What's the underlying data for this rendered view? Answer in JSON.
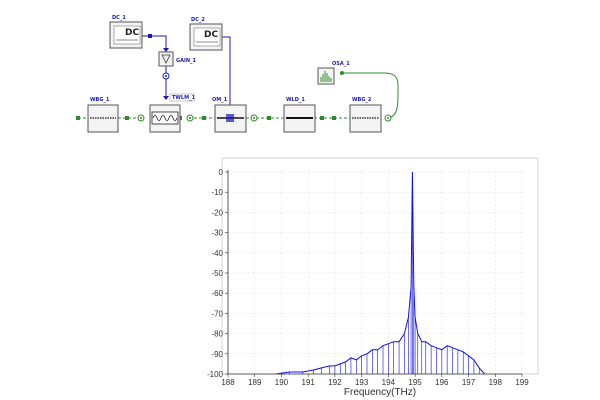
{
  "schematic": {
    "labels": {
      "dc1": "DC_1",
      "dc2": "DC_2",
      "gain1": "GAIN_1",
      "twlm1": "TWLM_1",
      "om1": "OM_1",
      "osa1": "OSA_1",
      "wbg1": "WBG_1",
      "wld1": "WLD_1",
      "wbg2": "WBG_2"
    },
    "dc_text": "DC",
    "colors": {
      "optical": "#2e8b2e",
      "electrical": "#1a1ab0",
      "box": "#555555"
    }
  },
  "chart_data": {
    "type": "line",
    "title": "",
    "xlabel": "Frequency(THz)",
    "ylabel": "",
    "xlim": [
      188,
      199
    ],
    "ylim": [
      -100,
      0
    ],
    "xticks": [
      188,
      189,
      190,
      191,
      192,
      193,
      194,
      195,
      196,
      197,
      198,
      199
    ],
    "yticks": [
      0,
      -10,
      -20,
      -30,
      -40,
      -50,
      -60,
      -70,
      -80,
      -90,
      -100
    ],
    "grid": true,
    "color": "#1010e0",
    "series": [
      {
        "x": [
          189.8,
          190.3,
          190.8,
          191.2,
          191.5,
          191.8,
          192.0,
          192.2,
          192.4,
          192.6,
          192.8,
          193.0,
          193.2,
          193.4,
          193.6,
          193.8,
          194.0,
          194.2,
          194.4,
          194.6,
          194.75,
          194.85,
          194.9,
          194.95,
          195.0,
          195.1,
          195.25,
          195.4,
          195.6,
          195.8,
          196.0,
          196.2,
          196.4,
          196.6,
          196.8,
          197.0,
          197.2,
          197.4,
          197.6
        ],
        "y": [
          -100,
          -99,
          -99,
          -98,
          -97,
          -96,
          -96,
          -95,
          -94,
          -92,
          -93,
          -91,
          -90,
          -88,
          -88,
          -86,
          -85,
          -84,
          -84,
          -80,
          -72,
          -57,
          0,
          -57,
          -72,
          -80,
          -84,
          -84,
          -86,
          -87,
          -88,
          -86,
          -87,
          -88,
          -89,
          -91,
          -93,
          -97,
          -100
        ]
      }
    ]
  }
}
